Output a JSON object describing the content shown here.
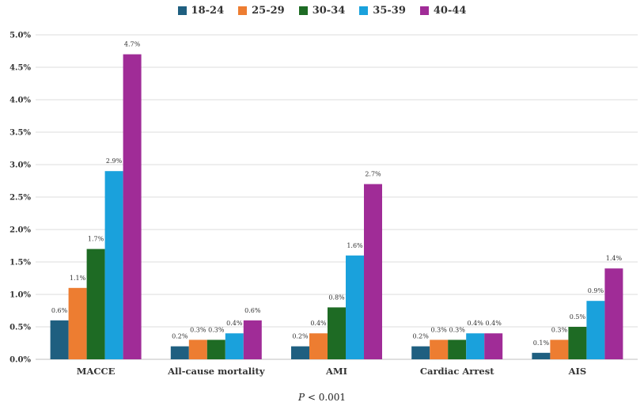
{
  "chart_data": {
    "type": "bar",
    "categories": [
      "MACCE",
      "All-cause mortality",
      "AMI",
      "Cardiac Arrest",
      "AIS"
    ],
    "series": [
      {
        "name": "18-24",
        "color": "#1f5f80",
        "values": [
          0.6,
          0.2,
          0.2,
          0.2,
          0.1
        ],
        "labels": [
          "0.6%",
          "0.2%",
          "0.2%",
          "0.2%",
          "0.1%"
        ]
      },
      {
        "name": "25-29",
        "color": "#ed7d31",
        "values": [
          1.1,
          0.3,
          0.4,
          0.3,
          0.3
        ],
        "labels": [
          "1.1%",
          "0.3%",
          "0.4%",
          "0.3%",
          "0.3%"
        ]
      },
      {
        "name": "30-34",
        "color": "#1e6b24",
        "values": [
          1.7,
          0.3,
          0.8,
          0.3,
          0.5
        ],
        "labels": [
          "1.7%",
          "0.3%",
          "0.8%",
          "0.3%",
          "0.5%"
        ]
      },
      {
        "name": "35-39",
        "color": "#1aa1dc",
        "values": [
          2.9,
          0.4,
          1.6,
          0.4,
          0.9
        ],
        "labels": [
          "2.9%",
          "0.4%",
          "1.6%",
          "0.4%",
          "0.9%"
        ]
      },
      {
        "name": "40-44",
        "color": "#a02c97",
        "values": [
          4.7,
          0.6,
          2.7,
          0.4,
          1.4
        ],
        "labels": [
          "4.7%",
          "0.6%",
          "2.7%",
          "0.4%",
          "1.4%"
        ]
      }
    ],
    "ylim": [
      0,
      5
    ],
    "yticks": [
      "0.0%",
      "0.5%",
      "1.0%",
      "1.5%",
      "2.0%",
      "2.5%",
      "3.0%",
      "3.5%",
      "4.0%",
      "4.5%",
      "5.0%"
    ],
    "grid": true,
    "legend_position": "top",
    "caption_italic": "P",
    "caption_rest": " < 0.001"
  }
}
